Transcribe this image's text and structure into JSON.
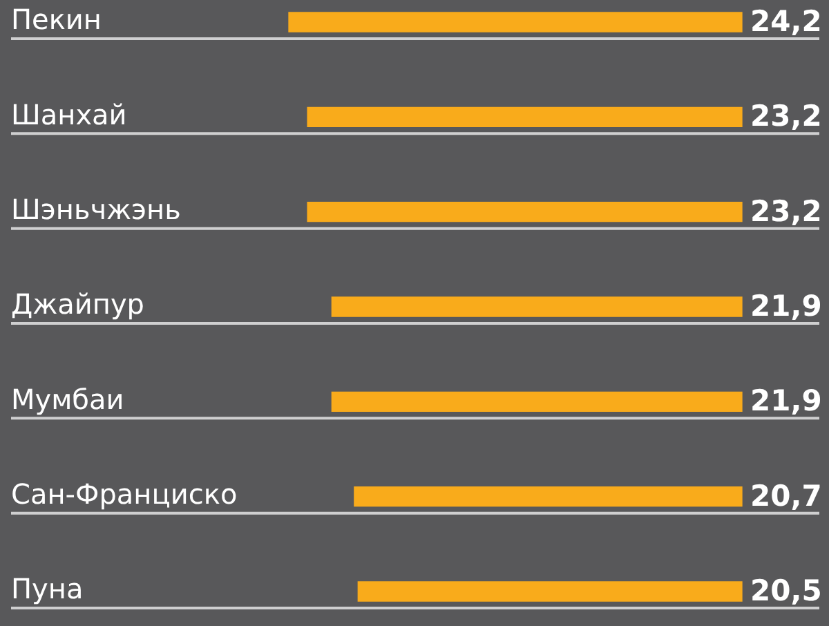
{
  "chart_data": {
    "type": "bar",
    "orientation": "horizontal",
    "categories": [
      "Пекин",
      "Шанхай",
      "Шэньчжэнь",
      "Джайпур",
      "Мумбаи",
      "Сан-Франциско",
      "Пуна"
    ],
    "values": [
      24.2,
      23.2,
      23.2,
      21.9,
      21.9,
      20.7,
      20.5
    ],
    "value_labels": [
      "24,2",
      "23,2",
      "23,2",
      "21,9",
      "21,9",
      "20,7",
      "20,5"
    ],
    "color": "#f9ab1b",
    "tick_labels": "y",
    "grid": "y"
  }
}
